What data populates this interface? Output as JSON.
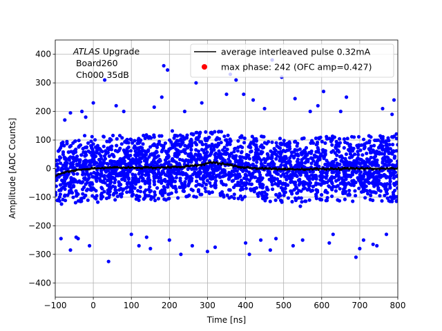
{
  "chart_data": {
    "type": "scatter",
    "xlabel": "Time [ns]",
    "ylabel": "Amplitude [ADC Counts]",
    "xlim": [
      -100,
      800
    ],
    "ylim": [
      -450,
      450
    ],
    "xticks": [
      -100,
      0,
      100,
      200,
      300,
      400,
      500,
      600,
      700,
      800
    ],
    "yticks": [
      -400,
      -300,
      -200,
      -100,
      0,
      100,
      200,
      300,
      400
    ],
    "xtick_labels": [
      "−100",
      "0",
      "100",
      "200",
      "300",
      "400",
      "500",
      "600",
      "700",
      "800"
    ],
    "ytick_labels": [
      "−400",
      "−300",
      "−200",
      "−100",
      "0",
      "100",
      "200",
      "300",
      "400"
    ],
    "grid": true,
    "legend_position": "top-right",
    "annotation": {
      "italic": "ATLAS",
      "rest": " Upgrade",
      "line2": " Board260",
      "line3": " Ch000 35dB"
    },
    "series": [
      {
        "name": "average interleaved pulse 0.32mA",
        "kind": "line",
        "color": "#000000",
        "x": [
          -100,
          -75,
          -50,
          -25,
          0,
          25,
          50,
          75,
          100,
          125,
          150,
          175,
          200,
          225,
          250,
          275,
          300,
          310,
          325,
          350,
          375,
          400,
          425,
          450,
          475,
          500,
          525,
          550,
          575,
          600,
          625,
          650,
          675,
          700,
          725,
          750,
          775,
          800
        ],
        "y": [
          -25,
          -12,
          -6,
          -2,
          0,
          2,
          3,
          4,
          4,
          3,
          3,
          4,
          5,
          6,
          8,
          12,
          18,
          22,
          20,
          14,
          8,
          4,
          2,
          0,
          -2,
          -3,
          -3,
          -2,
          -2,
          -1,
          -1,
          -1,
          0,
          0,
          0,
          0,
          0,
          0
        ]
      },
      {
        "name": "max phase: 242 (OFC amp=0.427)",
        "kind": "marker",
        "color": "#ff0000"
      }
    ],
    "noise_cloud": {
      "color": "#0000ff",
      "core_amplitude": 115,
      "outliers": [
        [
          -85,
          -245
        ],
        [
          -75,
          170
        ],
        [
          -60,
          195
        ],
        [
          -40,
          -245
        ],
        [
          -30,
          200
        ],
        [
          -20,
          180
        ],
        [
          -10,
          -270
        ],
        [
          -60,
          -285
        ],
        [
          -45,
          -240
        ],
        [
          0,
          230
        ],
        [
          30,
          310
        ],
        [
          40,
          -325
        ],
        [
          60,
          220
        ],
        [
          80,
          200
        ],
        [
          100,
          -230
        ],
        [
          120,
          -270
        ],
        [
          140,
          -240
        ],
        [
          150,
          -280
        ],
        [
          160,
          215
        ],
        [
          180,
          250
        ],
        [
          185,
          360
        ],
        [
          195,
          345
        ],
        [
          200,
          -250
        ],
        [
          230,
          -300
        ],
        [
          240,
          200
        ],
        [
          260,
          -270
        ],
        [
          270,
          300
        ],
        [
          285,
          230
        ],
        [
          300,
          -290
        ],
        [
          320,
          -275
        ],
        [
          350,
          260
        ],
        [
          360,
          330
        ],
        [
          375,
          310
        ],
        [
          395,
          260
        ],
        [
          400,
          -260
        ],
        [
          410,
          -300
        ],
        [
          420,
          240
        ],
        [
          440,
          -250
        ],
        [
          450,
          210
        ],
        [
          465,
          -285
        ],
        [
          470,
          380
        ],
        [
          480,
          -245
        ],
        [
          495,
          320
        ],
        [
          525,
          -270
        ],
        [
          530,
          245
        ],
        [
          550,
          -250
        ],
        [
          570,
          200
        ],
        [
          590,
          220
        ],
        [
          605,
          270
        ],
        [
          620,
          -260
        ],
        [
          630,
          -230
        ],
        [
          650,
          200
        ],
        [
          665,
          250
        ],
        [
          690,
          -310
        ],
        [
          700,
          -280
        ],
        [
          710,
          -250
        ],
        [
          735,
          -265
        ],
        [
          745,
          -270
        ],
        [
          760,
          210
        ],
        [
          770,
          -230
        ],
        [
          785,
          190
        ],
        [
          790,
          240
        ]
      ]
    }
  }
}
